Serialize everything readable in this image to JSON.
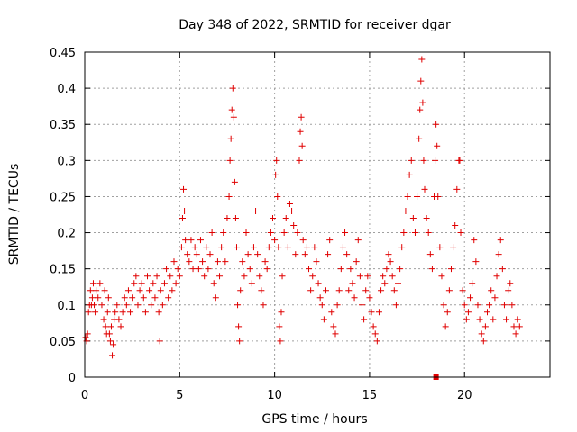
{
  "chart_data": {
    "type": "scatter",
    "title": "Day 348 of 2022, SRMTID for receiver dgar",
    "xlabel": "GPS time / hours",
    "ylabel": "SRMTID / TECUs",
    "xlim": [
      0,
      24.5
    ],
    "ylim": [
      0,
      0.45
    ],
    "xticks": [
      0,
      5,
      10,
      15,
      20
    ],
    "xtick_labels": [
      "0",
      "5",
      "10",
      "15",
      "20"
    ],
    "yticks": [
      0,
      0.05,
      0.1,
      0.15,
      0.2,
      0.25,
      0.3,
      0.35,
      0.4,
      0.45
    ],
    "ytick_labels": [
      "0",
      "0.05",
      "0.1",
      "0.15",
      "0.2",
      "0.25",
      "0.3",
      "0.35",
      "0.4",
      "0.45"
    ],
    "grid": true,
    "marker": "plus",
    "color": "#e00000",
    "series": [
      {
        "name": "SRMTID",
        "points": [
          [
            0.05,
            0.055
          ],
          [
            0.1,
            0.05
          ],
          [
            0.15,
            0.06
          ],
          [
            0.2,
            0.09
          ],
          [
            0.25,
            0.1
          ],
          [
            0.3,
            0.12
          ],
          [
            0.35,
            0.1
          ],
          [
            0.4,
            0.11
          ],
          [
            0.45,
            0.13
          ],
          [
            0.5,
            0.1
          ],
          [
            0.55,
            0.09
          ],
          [
            0.6,
            0.12
          ],
          [
            0.7,
            0.11
          ],
          [
            0.8,
            0.13
          ],
          [
            0.9,
            0.1
          ],
          [
            1.0,
            0.08
          ],
          [
            1.05,
            0.12
          ],
          [
            1.1,
            0.07
          ],
          [
            1.15,
            0.06
          ],
          [
            1.2,
            0.09
          ],
          [
            1.25,
            0.11
          ],
          [
            1.3,
            0.06
          ],
          [
            1.35,
            0.05
          ],
          [
            1.4,
            0.07
          ],
          [
            1.45,
            0.03
          ],
          [
            1.5,
            0.045
          ],
          [
            1.55,
            0.08
          ],
          [
            1.6,
            0.09
          ],
          [
            1.7,
            0.1
          ],
          [
            1.8,
            0.08
          ],
          [
            1.9,
            0.07
          ],
          [
            2.0,
            0.09
          ],
          [
            2.1,
            0.11
          ],
          [
            2.2,
            0.1
          ],
          [
            2.3,
            0.12
          ],
          [
            2.4,
            0.09
          ],
          [
            2.5,
            0.11
          ],
          [
            2.6,
            0.13
          ],
          [
            2.7,
            0.14
          ],
          [
            2.8,
            0.1
          ],
          [
            2.9,
            0.12
          ],
          [
            3.0,
            0.13
          ],
          [
            3.1,
            0.11
          ],
          [
            3.2,
            0.09
          ],
          [
            3.3,
            0.14
          ],
          [
            3.4,
            0.12
          ],
          [
            3.5,
            0.1
          ],
          [
            3.6,
            0.13
          ],
          [
            3.7,
            0.11
          ],
          [
            3.8,
            0.14
          ],
          [
            3.9,
            0.09
          ],
          [
            3.95,
            0.05
          ],
          [
            4.0,
            0.12
          ],
          [
            4.1,
            0.1
          ],
          [
            4.2,
            0.13
          ],
          [
            4.3,
            0.15
          ],
          [
            4.4,
            0.11
          ],
          [
            4.5,
            0.14
          ],
          [
            4.6,
            0.12
          ],
          [
            4.7,
            0.16
          ],
          [
            4.8,
            0.13
          ],
          [
            4.9,
            0.15
          ],
          [
            5.0,
            0.14
          ],
          [
            5.1,
            0.18
          ],
          [
            5.15,
            0.22
          ],
          [
            5.2,
            0.26
          ],
          [
            5.25,
            0.23
          ],
          [
            5.3,
            0.19
          ],
          [
            5.4,
            0.17
          ],
          [
            5.5,
            0.16
          ],
          [
            5.6,
            0.19
          ],
          [
            5.7,
            0.15
          ],
          [
            5.8,
            0.18
          ],
          [
            5.9,
            0.17
          ],
          [
            6.0,
            0.15
          ],
          [
            6.1,
            0.19
          ],
          [
            6.2,
            0.16
          ],
          [
            6.3,
            0.14
          ],
          [
            6.4,
            0.18
          ],
          [
            6.5,
            0.15
          ],
          [
            6.6,
            0.17
          ],
          [
            6.7,
            0.2
          ],
          [
            6.8,
            0.13
          ],
          [
            6.9,
            0.11
          ],
          [
            7.0,
            0.16
          ],
          [
            7.1,
            0.14
          ],
          [
            7.2,
            0.18
          ],
          [
            7.3,
            0.2
          ],
          [
            7.4,
            0.16
          ],
          [
            7.5,
            0.22
          ],
          [
            7.6,
            0.25
          ],
          [
            7.65,
            0.3
          ],
          [
            7.7,
            0.33
          ],
          [
            7.75,
            0.37
          ],
          [
            7.8,
            0.4
          ],
          [
            7.85,
            0.36
          ],
          [
            7.9,
            0.27
          ],
          [
            7.95,
            0.22
          ],
          [
            8.0,
            0.18
          ],
          [
            8.05,
            0.1
          ],
          [
            8.1,
            0.07
          ],
          [
            8.15,
            0.05
          ],
          [
            8.2,
            0.12
          ],
          [
            8.3,
            0.16
          ],
          [
            8.4,
            0.14
          ],
          [
            8.5,
            0.2
          ],
          [
            8.6,
            0.17
          ],
          [
            8.7,
            0.15
          ],
          [
            8.8,
            0.13
          ],
          [
            8.9,
            0.18
          ],
          [
            9.0,
            0.23
          ],
          [
            9.1,
            0.17
          ],
          [
            9.2,
            0.14
          ],
          [
            9.3,
            0.12
          ],
          [
            9.4,
            0.1
          ],
          [
            9.5,
            0.16
          ],
          [
            9.6,
            0.15
          ],
          [
            9.7,
            0.18
          ],
          [
            9.8,
            0.2
          ],
          [
            9.9,
            0.22
          ],
          [
            10.0,
            0.19
          ],
          [
            10.05,
            0.28
          ],
          [
            10.1,
            0.3
          ],
          [
            10.15,
            0.25
          ],
          [
            10.2,
            0.18
          ],
          [
            10.25,
            0.07
          ],
          [
            10.3,
            0.05
          ],
          [
            10.35,
            0.09
          ],
          [
            10.4,
            0.14
          ],
          [
            10.5,
            0.2
          ],
          [
            10.6,
            0.22
          ],
          [
            10.7,
            0.18
          ],
          [
            10.8,
            0.24
          ],
          [
            10.9,
            0.23
          ],
          [
            11.0,
            0.21
          ],
          [
            11.1,
            0.17
          ],
          [
            11.2,
            0.2
          ],
          [
            11.3,
            0.3
          ],
          [
            11.35,
            0.34
          ],
          [
            11.4,
            0.36
          ],
          [
            11.45,
            0.32
          ],
          [
            11.5,
            0.19
          ],
          [
            11.6,
            0.17
          ],
          [
            11.7,
            0.18
          ],
          [
            11.8,
            0.15
          ],
          [
            11.9,
            0.12
          ],
          [
            12.0,
            0.14
          ],
          [
            12.1,
            0.18
          ],
          [
            12.2,
            0.16
          ],
          [
            12.3,
            0.13
          ],
          [
            12.4,
            0.11
          ],
          [
            12.5,
            0.1
          ],
          [
            12.6,
            0.08
          ],
          [
            12.7,
            0.12
          ],
          [
            12.8,
            0.17
          ],
          [
            12.9,
            0.19
          ],
          [
            13.0,
            0.09
          ],
          [
            13.1,
            0.07
          ],
          [
            13.2,
            0.06
          ],
          [
            13.3,
            0.1
          ],
          [
            13.4,
            0.12
          ],
          [
            13.5,
            0.15
          ],
          [
            13.6,
            0.18
          ],
          [
            13.7,
            0.2
          ],
          [
            13.8,
            0.17
          ],
          [
            13.9,
            0.12
          ],
          [
            14.0,
            0.15
          ],
          [
            14.1,
            0.13
          ],
          [
            14.2,
            0.11
          ],
          [
            14.3,
            0.16
          ],
          [
            14.4,
            0.19
          ],
          [
            14.5,
            0.14
          ],
          [
            14.6,
            0.1
          ],
          [
            14.7,
            0.08
          ],
          [
            14.8,
            0.12
          ],
          [
            14.9,
            0.14
          ],
          [
            15.0,
            0.11
          ],
          [
            15.1,
            0.09
          ],
          [
            15.2,
            0.07
          ],
          [
            15.3,
            0.06
          ],
          [
            15.4,
            0.05
          ],
          [
            15.5,
            0.09
          ],
          [
            15.6,
            0.12
          ],
          [
            15.7,
            0.14
          ],
          [
            15.8,
            0.13
          ],
          [
            15.9,
            0.15
          ],
          [
            16.0,
            0.17
          ],
          [
            16.1,
            0.16
          ],
          [
            16.2,
            0.14
          ],
          [
            16.3,
            0.12
          ],
          [
            16.4,
            0.1
          ],
          [
            16.5,
            0.13
          ],
          [
            16.6,
            0.15
          ],
          [
            16.7,
            0.18
          ],
          [
            16.8,
            0.2
          ],
          [
            16.9,
            0.23
          ],
          [
            17.0,
            0.25
          ],
          [
            17.1,
            0.28
          ],
          [
            17.2,
            0.3
          ],
          [
            17.3,
            0.22
          ],
          [
            17.4,
            0.2
          ],
          [
            17.5,
            0.25
          ],
          [
            17.6,
            0.33
          ],
          [
            17.65,
            0.37
          ],
          [
            17.7,
            0.41
          ],
          [
            17.75,
            0.44
          ],
          [
            17.8,
            0.38
          ],
          [
            17.85,
            0.3
          ],
          [
            17.9,
            0.26
          ],
          [
            18.0,
            0.22
          ],
          [
            18.1,
            0.2
          ],
          [
            18.2,
            0.17
          ],
          [
            18.3,
            0.15
          ],
          [
            18.4,
            0.25
          ],
          [
            18.45,
            0.3
          ],
          [
            18.5,
            0.35
          ],
          [
            18.55,
            0.32
          ],
          [
            18.6,
            0.25
          ],
          [
            18.7,
            0.18
          ],
          [
            18.8,
            0.14
          ],
          [
            18.9,
            0.1
          ],
          [
            19.0,
            0.07
          ],
          [
            19.1,
            0.09
          ],
          [
            19.2,
            0.12
          ],
          [
            19.3,
            0.15
          ],
          [
            19.4,
            0.18
          ],
          [
            19.5,
            0.21
          ],
          [
            19.6,
            0.26
          ],
          [
            19.7,
            0.3
          ],
          [
            19.75,
            0.3
          ],
          [
            19.8,
            0.2
          ],
          [
            19.9,
            0.12
          ],
          [
            20.0,
            0.1
          ],
          [
            20.1,
            0.08
          ],
          [
            20.2,
            0.09
          ],
          [
            20.3,
            0.11
          ],
          [
            20.4,
            0.13
          ],
          [
            20.5,
            0.19
          ],
          [
            20.6,
            0.16
          ],
          [
            20.7,
            0.1
          ],
          [
            20.8,
            0.08
          ],
          [
            20.9,
            0.06
          ],
          [
            21.0,
            0.05
          ],
          [
            21.1,
            0.07
          ],
          [
            21.2,
            0.09
          ],
          [
            21.3,
            0.1
          ],
          [
            21.4,
            0.12
          ],
          [
            21.5,
            0.08
          ],
          [
            21.6,
            0.11
          ],
          [
            21.7,
            0.14
          ],
          [
            21.8,
            0.17
          ],
          [
            21.9,
            0.19
          ],
          [
            22.0,
            0.15
          ],
          [
            22.1,
            0.1
          ],
          [
            22.2,
            0.08
          ],
          [
            22.3,
            0.12
          ],
          [
            22.4,
            0.13
          ],
          [
            22.5,
            0.1
          ],
          [
            22.6,
            0.07
          ],
          [
            22.7,
            0.06
          ],
          [
            22.8,
            0.08
          ],
          [
            22.9,
            0.07
          ]
        ]
      }
    ],
    "highlight_point": [
      18.5,
      0.0
    ]
  }
}
